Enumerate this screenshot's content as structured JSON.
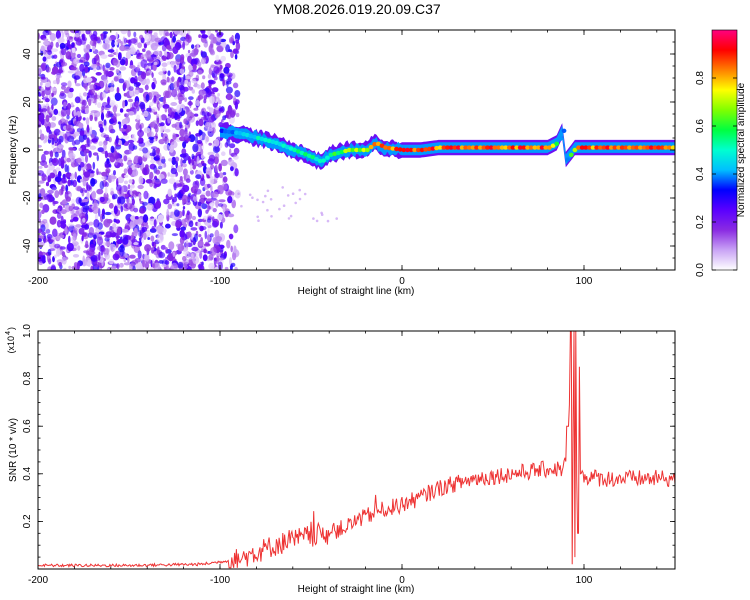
{
  "title": "YM08.2026.019.20.09.C37",
  "chart_data": [
    {
      "type": "heatmap",
      "title": "YM08.2026.019.20.09.C37",
      "xlabel": "Height of straight line (km)",
      "ylabel": "Frequency (Hz)",
      "xlim": [
        -200,
        150
      ],
      "ylim": [
        -50,
        50
      ],
      "xticks": [
        "-200",
        "-100",
        "0",
        "100"
      ],
      "yticks": [
        "-40",
        "-20",
        "0",
        "20",
        "40"
      ],
      "colorbar": {
        "label": "Normalized spectral amplitude",
        "range": [
          0,
          1
        ],
        "ticks": [
          "0.0",
          "0.2",
          "0.4",
          "0.6",
          "0.8"
        ],
        "colors": [
          "#ffffff",
          "#c9a3f5",
          "#8a2be2",
          "#5a00ff",
          "#0000ff",
          "#00bfff",
          "#00ffd0",
          "#00ff40",
          "#80ff00",
          "#ffff00",
          "#ff8000",
          "#ff0000",
          "#ff0080"
        ]
      },
      "noise_region": {
        "x_from": -200,
        "x_to": -90,
        "amplitude": 0.2
      },
      "ridge": {
        "x": [
          -100,
          -90,
          -80,
          -70,
          -60,
          -50,
          -45,
          -40,
          -35,
          -30,
          -20,
          -15,
          -10,
          0,
          10,
          20,
          40,
          60,
          80,
          85,
          88,
          90,
          95,
          100,
          120,
          150
        ],
        "y": [
          8,
          7,
          5,
          3,
          0,
          -3,
          -5,
          -2,
          -1,
          0,
          0,
          3,
          1,
          0,
          0,
          1,
          1,
          1,
          1,
          3,
          8,
          -4,
          1,
          1,
          1,
          1
        ],
        "amplitude": [
          0.4,
          0.45,
          0.5,
          0.5,
          0.55,
          0.55,
          0.5,
          0.6,
          0.65,
          0.7,
          0.75,
          0.85,
          0.85,
          0.9,
          0.9,
          0.9,
          0.9,
          0.9,
          0.9,
          0.5,
          0.4,
          0.45,
          0.9,
          0.9,
          0.9,
          0.9
        ]
      }
    },
    {
      "type": "line",
      "xlabel": "Height of straight line (km)",
      "ylabel": "SNR (10 * v/v)",
      "yscale_note": "(x10",
      "yscale_exp": "4",
      "xlim": [
        -200,
        150
      ],
      "ylim": [
        0,
        1.0
      ],
      "xticks": [
        "-200",
        "-100",
        "0",
        "100"
      ],
      "yticks": [
        "0.2",
        "0.4",
        "0.6",
        "0.8",
        "1.0"
      ],
      "series": [
        {
          "name": "SNR",
          "color": "#ee3333",
          "x": [
            -200,
            -150,
            -110,
            -90,
            -80,
            -70,
            -60,
            -50,
            -40,
            -30,
            -20,
            -10,
            0,
            10,
            20,
            30,
            40,
            50,
            60,
            70,
            80,
            88,
            90,
            92,
            94,
            96,
            98,
            100,
            110,
            120,
            130,
            140,
            150
          ],
          "y": [
            0.015,
            0.015,
            0.02,
            0.04,
            0.07,
            0.1,
            0.12,
            0.14,
            0.15,
            0.18,
            0.22,
            0.25,
            0.27,
            0.3,
            0.34,
            0.36,
            0.38,
            0.39,
            0.4,
            0.41,
            0.42,
            0.42,
            0.45,
            0.7,
            0.55,
            0.4,
            0.4,
            0.39,
            0.38,
            0.38,
            0.38,
            0.38,
            0.38
          ],
          "noise": 0.03,
          "spikes": [
            {
              "x": 91,
              "low": 0.08,
              "high": 0.6
            },
            {
              "x": 93,
              "low": 0.02,
              "high": 1.0
            },
            {
              "x": 95,
              "low": 0.05,
              "high": 1.0
            },
            {
              "x": 97,
              "low": 0.15,
              "high": 0.85
            }
          ]
        }
      ]
    }
  ]
}
